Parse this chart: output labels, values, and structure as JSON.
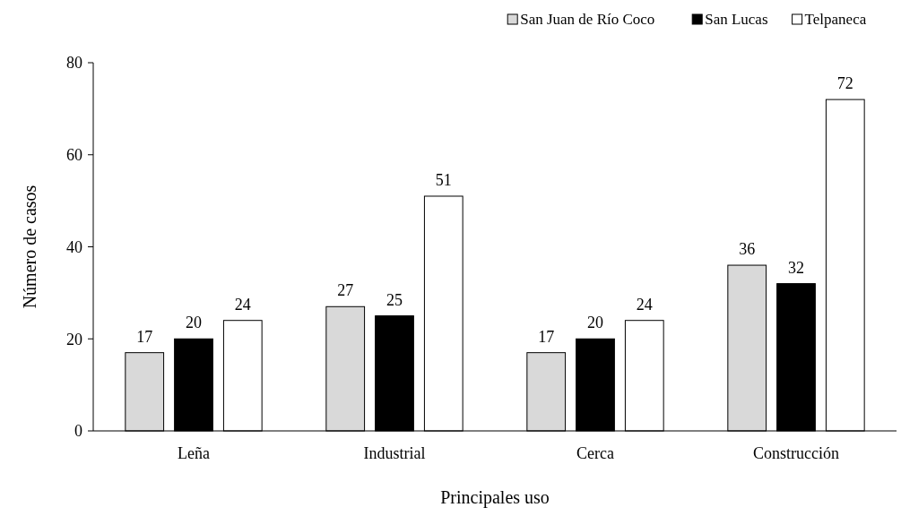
{
  "chart_data": {
    "type": "bar",
    "xlabel": "Principales uso",
    "ylabel": "Número de casos",
    "categories": [
      "Leña",
      "Industrial",
      "Cerca",
      "Construcción"
    ],
    "series": [
      {
        "name": "San Juan de Río Coco",
        "color": "#d9d9d9",
        "values": [
          17,
          27,
          17,
          36
        ]
      },
      {
        "name": "San Lucas",
        "color": "#000000",
        "values": [
          20,
          25,
          20,
          32
        ]
      },
      {
        "name": "Telpaneca",
        "color": "#ffffff",
        "values": [
          24,
          51,
          24,
          72
        ]
      }
    ],
    "ylim": [
      0,
      80
    ],
    "yticks": [
      0,
      20,
      40,
      60,
      80
    ],
    "data_labels": true,
    "legend": "top right",
    "grid": false
  }
}
